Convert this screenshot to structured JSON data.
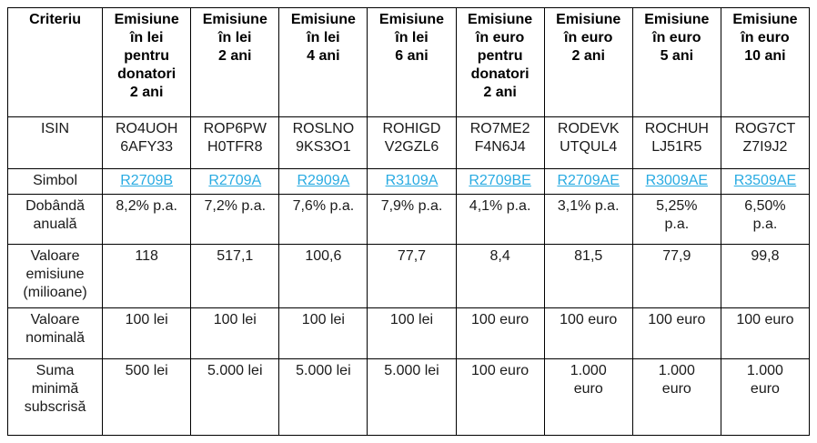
{
  "chart_data": {
    "type": "table",
    "title": "",
    "link_color": "#29abe2",
    "columns": [
      "Criteriu",
      "Emisiune în lei pentru donatori 2 ani",
      "Emisiune în lei 2 ani",
      "Emisiune în lei 4 ani",
      "Emisiune în lei 6 ani",
      "Emisiune în euro pentru donatori 2 ani",
      "Emisiune în euro 2 ani",
      "Emisiune în euro 5 ani",
      "Emisiune în euro 10 ani"
    ],
    "rows": [
      [
        "ISIN",
        "RO4UOH6AFY33",
        "ROP6PWH0TFR8",
        "ROSLNO9KS3O1",
        "ROHIGDV2GZL6",
        "RO7ME2F4N6J4",
        "RODEVKUTQUL4",
        "ROCHUHLJ51R5",
        "ROG7CTZ7I9J2"
      ],
      [
        "Simbol",
        "R2709B",
        "R2709A",
        "R2909A",
        "R3109A",
        "R2709BE",
        "R2709AE",
        "R3009AE",
        "R3509AE"
      ],
      [
        "Dobândă anuală",
        "8,2% p.a.",
        "7,2% p.a.",
        "7,6% p.a.",
        "7,9% p.a.",
        "4,1% p.a.",
        "3,1% p.a.",
        "5,25% p.a.",
        "6,50% p.a."
      ],
      [
        "Valoare emisiune (milioane)",
        "118",
        "517,1",
        "100,6",
        "77,7",
        "8,4",
        "81,5",
        "77,9",
        "99,8"
      ],
      [
        "Valoare nominală",
        "100 lei",
        "100 lei",
        "100 lei",
        "100 lei",
        "100 euro",
        "100 euro",
        "100 euro",
        "100 euro"
      ],
      [
        "Suma minimă subscrisă",
        "500 lei",
        "5.000 lei",
        "5.000 lei",
        "5.000 lei",
        "100 euro",
        "1.000 euro",
        "1.000 euro",
        "1.000 euro"
      ]
    ]
  },
  "table": {
    "header": [
      "Criteriu",
      "Emisiune\nîn lei\npentru\ndonatori\n2 ani",
      "Emisiune\nîn lei\n2 ani",
      "Emisiune\nîn lei\n4 ani",
      "Emisiune\nîn lei\n6 ani",
      "Emisiune\nîn euro\npentru\ndonatori\n2 ani",
      "Emisiune\nîn euro\n2 ani",
      "Emisiune\nîn euro\n5 ani",
      "Emisiune\nîn euro\n10 ani"
    ],
    "rows": [
      {
        "key": "isin",
        "label": "ISIN",
        "type": "text",
        "values": [
          "RO4UOH\n6AFY33",
          "ROP6PW\nH0TFR8",
          "ROSLNO\n9KS3O1",
          "ROHIGD\nV2GZL6",
          "RO7ME2\nF4N6J4",
          "RODEVK\nUTQUL4",
          "ROCHUH\nLJ51R5",
          "ROG7CT\nZ7I9J2"
        ]
      },
      {
        "key": "simbol",
        "label": "Simbol",
        "type": "link",
        "values": [
          "R2709B",
          "R2709A",
          "R2909A",
          "R3109A",
          "R2709BE",
          "R2709AE",
          "R3009AE",
          "R3509AE"
        ]
      },
      {
        "key": "dobanda",
        "label": "Dobândă\nanuală",
        "type": "text",
        "values": [
          "8,2% p.a.",
          "7,2% p.a.",
          "7,6% p.a.",
          "7,9% p.a.",
          "4,1% p.a.",
          "3,1% p.a.",
          "5,25%\np.a.",
          "6,50%\np.a."
        ]
      },
      {
        "key": "emisiune",
        "label": "Valoare\nemisiune\n(milioane)",
        "type": "text",
        "values": [
          "118",
          "517,1",
          "100,6",
          "77,7",
          "8,4",
          "81,5",
          "77,9",
          "99,8"
        ]
      },
      {
        "key": "nominala",
        "label": "Valoare\nnominală",
        "type": "text",
        "values": [
          "100 lei",
          "100 lei",
          "100 lei",
          "100 lei",
          "100 euro",
          "100 euro",
          "100 euro",
          "100 euro"
        ]
      },
      {
        "key": "suma",
        "label": "Suma\nminimă\nsubscrisă",
        "type": "text",
        "values": [
          "500 lei",
          "5.000 lei",
          "5.000 lei",
          "5.000 lei",
          "100 euro",
          "1.000\neuro",
          "1.000\neuro",
          "1.000\neuro"
        ]
      }
    ]
  }
}
